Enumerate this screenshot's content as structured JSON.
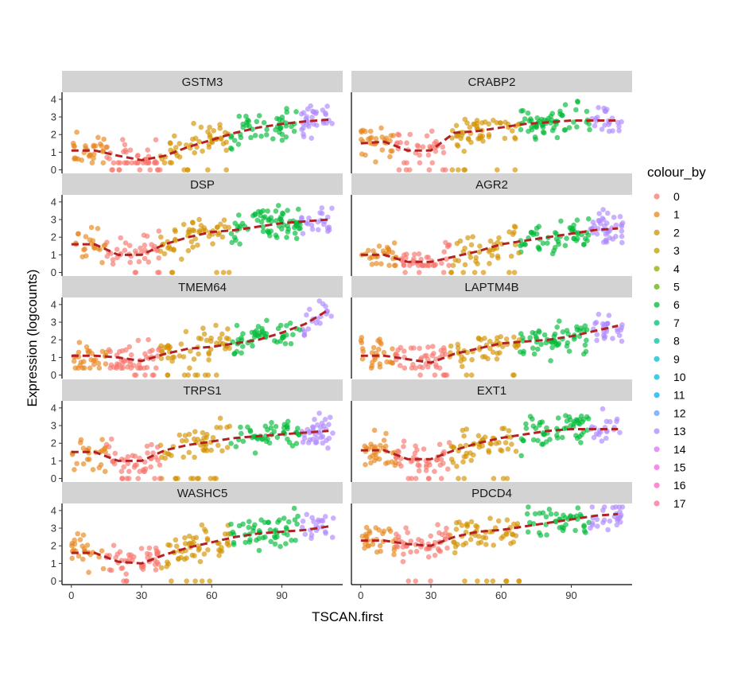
{
  "chart_data": {
    "type": "scatter",
    "xlabel": "TSCAN.first",
    "ylabel": "Expression (logcounts)",
    "xlim": [
      -4,
      116
    ],
    "ylim": [
      -0.2,
      4.4
    ],
    "x_ticks": [
      0,
      30,
      60,
      90
    ],
    "y_ticks": [
      0,
      1,
      2,
      3,
      4
    ],
    "legend": {
      "title": "colour_by",
      "placement": "right",
      "entries": [
        "0",
        "1",
        "2",
        "3",
        "4",
        "5",
        "6",
        "7",
        "8",
        "9",
        "10",
        "11",
        "12",
        "13",
        "14",
        "15",
        "16",
        "17"
      ],
      "colors": [
        "#F8766D",
        "#E7861B",
        "#D39200",
        "#B8A000",
        "#93AA00",
        "#5EB300",
        "#00BA38",
        "#00BF74",
        "#00C19F",
        "#00BFC4",
        "#00B9E3",
        "#00ADFA",
        "#619CFF",
        "#AE87FF",
        "#DB72FB",
        "#F564E3",
        "#FF61C3",
        "#FF6C91"
      ]
    },
    "cluster_segments": [
      {
        "cluster": "1",
        "x": [
          0,
          15
        ]
      },
      {
        "cluster": "0",
        "x": [
          15,
          38
        ]
      },
      {
        "cluster": "2",
        "x": [
          38,
          68
        ]
      },
      {
        "cluster": "6",
        "x": [
          68,
          98
        ]
      },
      {
        "cluster": "13",
        "x": [
          98,
          112
        ]
      }
    ],
    "trend_color": "#B22222",
    "panels": [
      {
        "gene": "GSTM3",
        "trend": {
          "x": [
            0,
            10,
            20,
            30,
            40,
            50,
            60,
            70,
            80,
            90,
            100,
            110
          ],
          "y": [
            1.1,
            1.1,
            0.8,
            0.55,
            0.8,
            1.3,
            1.7,
            2.1,
            2.4,
            2.6,
            2.75,
            2.85
          ]
        }
      },
      {
        "gene": "CRABP2",
        "trend": {
          "x": [
            0,
            10,
            20,
            30,
            40,
            50,
            60,
            70,
            80,
            90,
            100,
            110
          ],
          "y": [
            1.5,
            1.6,
            1.1,
            1.1,
            2.1,
            2.2,
            2.4,
            2.6,
            2.7,
            2.8,
            2.8,
            2.8
          ]
        }
      },
      {
        "gene": "DSP",
        "trend": {
          "x": [
            0,
            10,
            20,
            30,
            40,
            50,
            60,
            70,
            80,
            90,
            100,
            110
          ],
          "y": [
            1.6,
            1.6,
            1.0,
            1.0,
            1.6,
            2.0,
            2.3,
            2.4,
            2.6,
            2.8,
            2.9,
            3.0
          ]
        }
      },
      {
        "gene": "AGR2",
        "trend": {
          "x": [
            0,
            10,
            20,
            30,
            40,
            50,
            60,
            70,
            80,
            90,
            100,
            110
          ],
          "y": [
            1.0,
            1.0,
            0.6,
            0.6,
            0.9,
            1.2,
            1.6,
            1.8,
            2.0,
            2.2,
            2.4,
            2.5
          ]
        }
      },
      {
        "gene": "TMEM64",
        "trend": {
          "x": [
            0,
            10,
            20,
            30,
            40,
            50,
            60,
            70,
            80,
            90,
            100,
            110
          ],
          "y": [
            1.1,
            1.1,
            1.0,
            0.8,
            1.2,
            1.5,
            1.6,
            1.8,
            2.0,
            2.4,
            2.9,
            3.7
          ]
        }
      },
      {
        "gene": "LAPTM4B",
        "trend": {
          "x": [
            0,
            10,
            20,
            30,
            40,
            50,
            60,
            70,
            80,
            90,
            100,
            110
          ],
          "y": [
            1.1,
            1.1,
            0.9,
            0.7,
            1.2,
            1.5,
            1.8,
            1.9,
            2.0,
            2.2,
            2.5,
            2.8
          ]
        }
      },
      {
        "gene": "TRPS1",
        "trend": {
          "x": [
            0,
            10,
            20,
            30,
            40,
            50,
            60,
            70,
            80,
            90,
            100,
            110
          ],
          "y": [
            1.5,
            1.5,
            1.0,
            1.0,
            1.6,
            1.9,
            2.1,
            2.3,
            2.4,
            2.5,
            2.6,
            2.7
          ]
        }
      },
      {
        "gene": "EXT1",
        "trend": {
          "x": [
            0,
            10,
            20,
            30,
            40,
            50,
            60,
            70,
            80,
            90,
            100,
            110
          ],
          "y": [
            1.6,
            1.6,
            1.1,
            1.1,
            1.6,
            2.0,
            2.3,
            2.5,
            2.7,
            2.8,
            2.8,
            2.8
          ]
        }
      },
      {
        "gene": "WASHC5",
        "trend": {
          "x": [
            0,
            10,
            20,
            30,
            40,
            50,
            60,
            70,
            80,
            90,
            100,
            110
          ],
          "y": [
            1.6,
            1.6,
            1.1,
            1.0,
            1.5,
            1.9,
            2.2,
            2.5,
            2.7,
            2.8,
            2.9,
            3.1
          ]
        }
      },
      {
        "gene": "PDCD4",
        "trend": {
          "x": [
            0,
            10,
            20,
            30,
            40,
            50,
            60,
            70,
            80,
            90,
            100,
            110
          ],
          "y": [
            2.3,
            2.3,
            2.1,
            2.0,
            2.5,
            2.8,
            2.9,
            3.1,
            3.3,
            3.5,
            3.7,
            3.8
          ]
        }
      }
    ]
  }
}
